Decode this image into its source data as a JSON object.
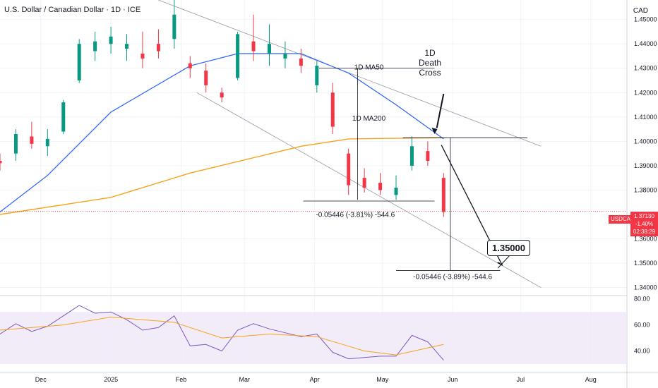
{
  "header": {
    "title": "U.S. Dollar / Canadian Dollar · 1D · ICE",
    "currency": "CAD"
  },
  "price_axis": {
    "ticks": [
      "1.45000",
      "1.44000",
      "1.43000",
      "1.42000",
      "1.41000",
      "1.40000",
      "1.39000",
      "1.38000",
      "1.36000",
      "1.35000",
      "1.34000"
    ]
  },
  "rsi_axis": {
    "ticks": [
      "80.00",
      "60.00",
      "40.00"
    ]
  },
  "time_axis": {
    "ticks": [
      "Dec",
      "2025",
      "Feb",
      "Mar",
      "Apr",
      "May",
      "Jun",
      "Jul",
      "Aug"
    ]
  },
  "last_price": {
    "symbol": "USDCAD",
    "price": "1.37130",
    "change": "-1.40%",
    "countdown": "02:38:29"
  },
  "annotations": {
    "ma50_label": "1D MA50",
    "ma200_label": "1D MA200",
    "death_cross": [
      "1D",
      "Death",
      "Cross"
    ],
    "measure1": "-0.05446 (-3.81%) -544.6",
    "measure2": "-0.05446 (-3.89%) -544.6",
    "target": "1.35000"
  },
  "colors": {
    "up": "#089981",
    "down": "#f23645",
    "ma50": "#2962ff",
    "ma200": "#f7a21b",
    "rsi": "#7e57c2",
    "rsi_band": "#ede7f6",
    "grid": "#f0f3fa"
  },
  "chart_data": {
    "type": "candlestick",
    "symbol": "USDCAD",
    "timeframe": "1D",
    "ylim": [
      1.337,
      1.458
    ],
    "x_start": "2024-11-13",
    "x_end": "2025-08-17",
    "last_close": 1.3713,
    "ohlc_samples": [
      {
        "date": "2024-11-13",
        "o": 1.392,
        "h": 1.395,
        "l": 1.388,
        "c": 1.391
      },
      {
        "date": "2024-11-20",
        "o": 1.395,
        "h": 1.405,
        "l": 1.392,
        "c": 1.403
      },
      {
        "date": "2024-11-27",
        "o": 1.402,
        "h": 1.408,
        "l": 1.397,
        "c": 1.399
      },
      {
        "date": "2024-12-04",
        "o": 1.398,
        "h": 1.405,
        "l": 1.394,
        "c": 1.401
      },
      {
        "date": "2024-12-11",
        "o": 1.404,
        "h": 1.417,
        "l": 1.403,
        "c": 1.416
      },
      {
        "date": "2024-12-18",
        "o": 1.425,
        "h": 1.442,
        "l": 1.424,
        "c": 1.44
      },
      {
        "date": "2024-12-25",
        "o": 1.437,
        "h": 1.445,
        "l": 1.433,
        "c": 1.441
      },
      {
        "date": "2025-01-01",
        "o": 1.44,
        "h": 1.447,
        "l": 1.436,
        "c": 1.443
      },
      {
        "date": "2025-01-08",
        "o": 1.438,
        "h": 1.444,
        "l": 1.433,
        "c": 1.44
      },
      {
        "date": "2025-01-15",
        "o": 1.436,
        "h": 1.445,
        "l": 1.43,
        "c": 1.434
      },
      {
        "date": "2025-01-22",
        "o": 1.44,
        "h": 1.446,
        "l": 1.434,
        "c": 1.437
      },
      {
        "date": "2025-01-29",
        "o": 1.442,
        "h": 1.468,
        "l": 1.438,
        "c": 1.452
      },
      {
        "date": "2025-02-05",
        "o": 1.432,
        "h": 1.435,
        "l": 1.426,
        "c": 1.43
      },
      {
        "date": "2025-02-12",
        "o": 1.429,
        "h": 1.432,
        "l": 1.42,
        "c": 1.423
      },
      {
        "date": "2025-02-19",
        "o": 1.42,
        "h": 1.422,
        "l": 1.416,
        "c": 1.418
      },
      {
        "date": "2025-02-26",
        "o": 1.426,
        "h": 1.445,
        "l": 1.425,
        "c": 1.444
      },
      {
        "date": "2025-03-05",
        "o": 1.441,
        "h": 1.452,
        "l": 1.433,
        "c": 1.437
      },
      {
        "date": "2025-03-12",
        "o": 1.436,
        "h": 1.448,
        "l": 1.431,
        "c": 1.44
      },
      {
        "date": "2025-03-19",
        "o": 1.434,
        "h": 1.441,
        "l": 1.43,
        "c": 1.436
      },
      {
        "date": "2025-03-26",
        "o": 1.434,
        "h": 1.438,
        "l": 1.428,
        "c": 1.431
      },
      {
        "date": "2025-04-02",
        "o": 1.423,
        "h": 1.433,
        "l": 1.42,
        "c": 1.431
      },
      {
        "date": "2025-04-09",
        "o": 1.42,
        "h": 1.424,
        "l": 1.403,
        "c": 1.406
      },
      {
        "date": "2025-04-16",
        "o": 1.395,
        "h": 1.397,
        "l": 1.378,
        "c": 1.382
      },
      {
        "date": "2025-04-23",
        "o": 1.385,
        "h": 1.389,
        "l": 1.379,
        "c": 1.381
      },
      {
        "date": "2025-04-30",
        "o": 1.383,
        "h": 1.387,
        "l": 1.378,
        "c": 1.38
      },
      {
        "date": "2025-05-07",
        "o": 1.378,
        "h": 1.386,
        "l": 1.376,
        "c": 1.381
      },
      {
        "date": "2025-05-14",
        "o": 1.39,
        "h": 1.402,
        "l": 1.388,
        "c": 1.398
      },
      {
        "date": "2025-05-21",
        "o": 1.396,
        "h": 1.4,
        "l": 1.39,
        "c": 1.392
      },
      {
        "date": "2025-05-28",
        "o": 1.385,
        "h": 1.387,
        "l": 1.369,
        "c": 1.371
      }
    ],
    "ma50": [
      {
        "date": "2024-11-13",
        "y": 1.371
      },
      {
        "date": "2024-12-04",
        "y": 1.386
      },
      {
        "date": "2025-01-01",
        "y": 1.412
      },
      {
        "date": "2025-02-05",
        "y": 1.431
      },
      {
        "date": "2025-02-26",
        "y": 1.436
      },
      {
        "date": "2025-03-26",
        "y": 1.436
      },
      {
        "date": "2025-04-16",
        "y": 1.428
      },
      {
        "date": "2025-05-07",
        "y": 1.415
      },
      {
        "date": "2025-05-28",
        "y": 1.401
      }
    ],
    "ma200": [
      {
        "date": "2024-11-13",
        "y": 1.37
      },
      {
        "date": "2025-01-01",
        "y": 1.377
      },
      {
        "date": "2025-02-05",
        "y": 1.387
      },
      {
        "date": "2025-03-26",
        "y": 1.398
      },
      {
        "date": "2025-04-16",
        "y": 1.401
      },
      {
        "date": "2025-05-28",
        "y": 1.4015
      }
    ],
    "rsi": {
      "ylim": [
        30,
        82
      ],
      "band": [
        30,
        70
      ],
      "rsi": [
        {
          "date": "2024-11-13",
          "y": 53
        },
        {
          "date": "2024-11-20",
          "y": 61
        },
        {
          "date": "2024-11-27",
          "y": 55
        },
        {
          "date": "2024-12-04",
          "y": 59
        },
        {
          "date": "2024-12-11",
          "y": 67
        },
        {
          "date": "2024-12-18",
          "y": 75
        },
        {
          "date": "2024-12-25",
          "y": 69
        },
        {
          "date": "2025-01-01",
          "y": 70
        },
        {
          "date": "2025-01-08",
          "y": 64
        },
        {
          "date": "2025-01-15",
          "y": 56
        },
        {
          "date": "2025-01-22",
          "y": 58
        },
        {
          "date": "2025-01-29",
          "y": 67
        },
        {
          "date": "2025-02-05",
          "y": 44
        },
        {
          "date": "2025-02-12",
          "y": 45
        },
        {
          "date": "2025-02-19",
          "y": 40
        },
        {
          "date": "2025-02-26",
          "y": 56
        },
        {
          "date": "2025-03-05",
          "y": 61
        },
        {
          "date": "2025-03-12",
          "y": 57
        },
        {
          "date": "2025-03-19",
          "y": 54
        },
        {
          "date": "2025-03-26",
          "y": 51
        },
        {
          "date": "2025-04-02",
          "y": 53
        },
        {
          "date": "2025-04-09",
          "y": 39
        },
        {
          "date": "2025-04-16",
          "y": 34
        },
        {
          "date": "2025-04-23",
          "y": 35
        },
        {
          "date": "2025-04-30",
          "y": 36
        },
        {
          "date": "2025-05-07",
          "y": 36
        },
        {
          "date": "2025-05-14",
          "y": 52
        },
        {
          "date": "2025-05-21",
          "y": 47
        },
        {
          "date": "2025-05-28",
          "y": 33
        }
      ],
      "signal": [
        {
          "date": "2024-11-13",
          "y": 56
        },
        {
          "date": "2024-12-11",
          "y": 60
        },
        {
          "date": "2025-01-01",
          "y": 66
        },
        {
          "date": "2025-01-29",
          "y": 62
        },
        {
          "date": "2025-02-19",
          "y": 50
        },
        {
          "date": "2025-03-12",
          "y": 53
        },
        {
          "date": "2025-04-02",
          "y": 51
        },
        {
          "date": "2025-04-23",
          "y": 40
        },
        {
          "date": "2025-05-07",
          "y": 37
        },
        {
          "date": "2025-05-28",
          "y": 45
        }
      ]
    }
  }
}
